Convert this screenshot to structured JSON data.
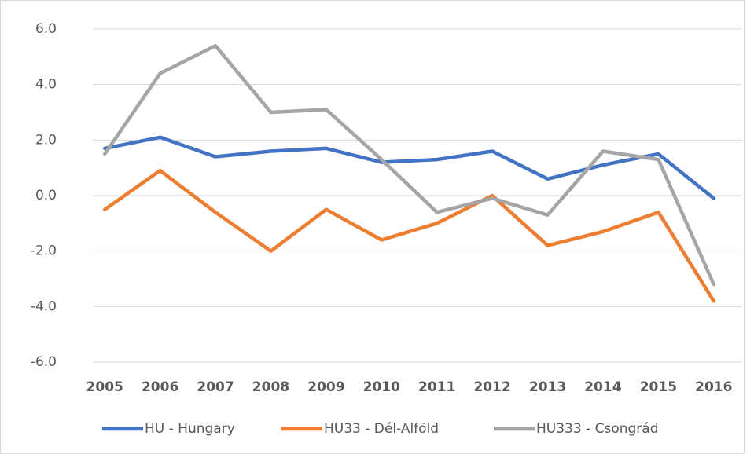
{
  "chart_data": {
    "type": "line",
    "categories": [
      "2005",
      "2006",
      "2007",
      "2008",
      "2009",
      "2010",
      "2011",
      "2012",
      "2013",
      "2014",
      "2015",
      "2016"
    ],
    "series": [
      {
        "name": "HU - Hungary",
        "color": "#4472c4",
        "values": [
          1.7,
          2.1,
          1.4,
          1.6,
          1.7,
          1.2,
          1.3,
          1.6,
          0.6,
          1.1,
          1.5,
          -0.1
        ]
      },
      {
        "name": "HU33 - Dél-Alföld",
        "color": "#ed7d31",
        "values": [
          -0.5,
          0.9,
          -0.6,
          -2.0,
          -0.5,
          -1.6,
          -1.0,
          0.0,
          -1.8,
          -1.3,
          -0.6,
          -3.8
        ]
      },
      {
        "name": "HU333 - Csongrád",
        "color": "#a5a5a5",
        "values": [
          1.5,
          4.4,
          5.4,
          3.0,
          3.1,
          1.3,
          -0.6,
          -0.1,
          -0.7,
          1.6,
          1.3,
          -3.2
        ]
      }
    ],
    "ylim": [
      -6,
      6
    ],
    "yticks": [
      {
        "value": -6,
        "label": "-6.0"
      },
      {
        "value": -4,
        "label": "-4.0"
      },
      {
        "value": -2,
        "label": "-2.0"
      },
      {
        "value": 0,
        "label": "0.0"
      },
      {
        "value": 2,
        "label": "2.0"
      },
      {
        "value": 4,
        "label": "4.0"
      },
      {
        "value": 6,
        "label": "6.0"
      }
    ],
    "grid": true,
    "legend": "bottom"
  }
}
